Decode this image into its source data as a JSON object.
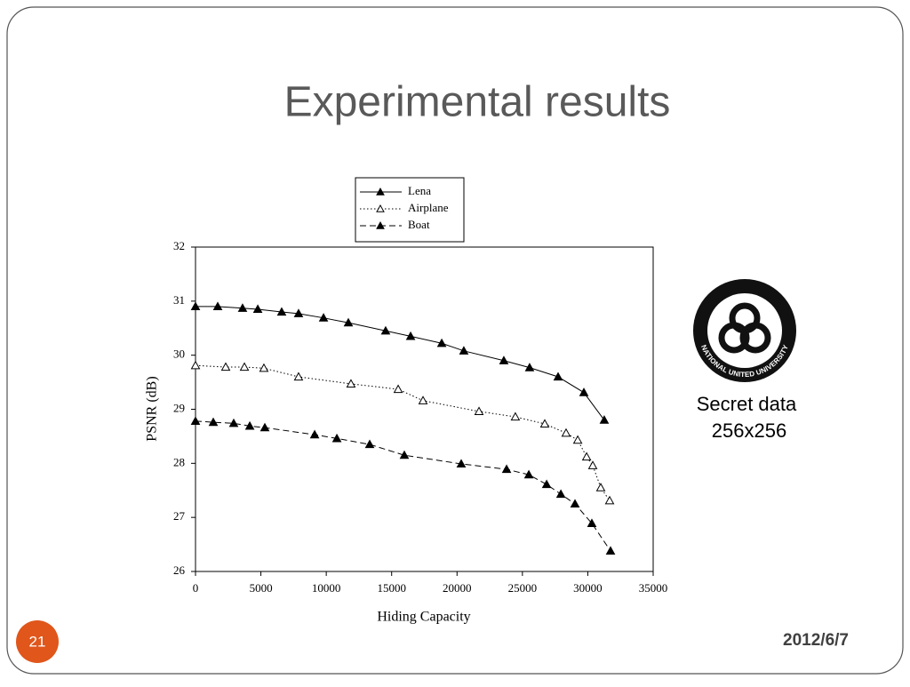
{
  "slide": {
    "title": "Experimental results",
    "note": [
      "Secret data",
      "256x256"
    ],
    "logo_text": "NATIONAL UNITED UNIVERSITY",
    "page_number": "21",
    "date": "2012/6/7"
  },
  "chart_data": {
    "type": "line",
    "x_label": "Hiding Capacity",
    "y_label": "PSNR (dB)",
    "xlim": [
      0,
      35000
    ],
    "xticks": [
      0,
      5000,
      10000,
      15000,
      20000,
      25000,
      30000,
      35000
    ],
    "ylim": [
      26,
      32
    ],
    "yticks": [
      26,
      27,
      28,
      29,
      30,
      31,
      32
    ],
    "legend": "top",
    "series": [
      {
        "name": "Lena",
        "color": "#000000",
        "line_style": "solid",
        "marker_fill": true,
        "x": [
          0,
          1700,
          3600,
          4760,
          6590,
          7880,
          9790,
          11690,
          14540,
          16450,
          18830,
          20520,
          23580,
          25550,
          27730,
          29700,
          31260
        ],
        "values": [
          30.9,
          30.9,
          30.87,
          30.85,
          30.8,
          30.77,
          30.69,
          30.6,
          30.45,
          30.35,
          30.22,
          30.08,
          29.9,
          29.77,
          29.6,
          29.31,
          28.8
        ]
      },
      {
        "name": "Airplane",
        "color": "#000000",
        "line_style": "dotted",
        "marker_fill": false,
        "x": [
          0,
          2310,
          3740,
          5230,
          7880,
          11890,
          15500,
          17400,
          21680,
          24460,
          26710,
          28340,
          29230,
          29910,
          30380,
          30990,
          31670
        ],
        "values": [
          29.81,
          29.78,
          29.78,
          29.76,
          29.6,
          29.47,
          29.37,
          29.16,
          28.96,
          28.86,
          28.73,
          28.56,
          28.43,
          28.12,
          27.96,
          27.55,
          27.31
        ]
      },
      {
        "name": "Boat",
        "color": "#000000",
        "line_style": "dashed",
        "marker_fill": true,
        "x": [
          0,
          1360,
          2920,
          4150,
          5300,
          9110,
          10810,
          13320,
          15970,
          20320,
          23790,
          25490,
          26850,
          27940,
          29020,
          30310,
          31740
        ],
        "values": [
          28.78,
          28.76,
          28.74,
          28.69,
          28.66,
          28.53,
          28.46,
          28.35,
          28.15,
          27.99,
          27.89,
          27.79,
          27.61,
          27.43,
          27.25,
          26.89,
          26.38
        ]
      }
    ]
  }
}
